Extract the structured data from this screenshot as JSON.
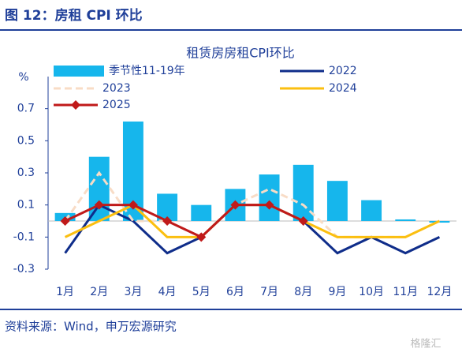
{
  "header": {
    "title": "图 12：房租 CPI 环比"
  },
  "chart_data": {
    "type": "bar",
    "title": "租赁房房租CPI环比",
    "y_label": "%",
    "categories": [
      "1月",
      "2月",
      "3月",
      "4月",
      "5月",
      "6月",
      "7月",
      "8月",
      "9月",
      "10月",
      "11月",
      "12月"
    ],
    "series": [
      {
        "name": "季节性11-19年",
        "type": "bar",
        "color": "#16b6ec",
        "values": [
          0.05,
          0.4,
          0.62,
          0.17,
          0.1,
          0.2,
          0.29,
          0.35,
          0.25,
          0.13,
          0.01,
          -0.01
        ]
      },
      {
        "name": "2022",
        "type": "line",
        "color": "#0f2d8a",
        "values": [
          -0.2,
          0.1,
          0.0,
          -0.2,
          -0.1,
          0.1,
          0.1,
          0.0,
          -0.2,
          -0.1,
          -0.2,
          -0.1
        ]
      },
      {
        "name": "2023",
        "type": "line",
        "dashed": true,
        "color": "#f8dcc6",
        "values": [
          0.0,
          0.3,
          0.0,
          0.0,
          -0.1,
          0.1,
          0.2,
          0.1,
          -0.1,
          -0.1,
          -0.1,
          0.0
        ]
      },
      {
        "name": "2024",
        "type": "line",
        "color": "#fbbf10",
        "values": [
          -0.1,
          0.0,
          0.1,
          -0.1,
          -0.1,
          0.1,
          0.1,
          0.0,
          -0.1,
          -0.1,
          -0.1,
          0.0
        ]
      },
      {
        "name": "2025",
        "type": "line",
        "markers": true,
        "color": "#c01a1a",
        "values": [
          0.0,
          0.1,
          0.1,
          0.0,
          -0.1,
          0.1,
          0.1,
          0.0,
          null,
          null,
          null,
          null
        ]
      }
    ],
    "ylim": [
      -0.3,
      0.9
    ],
    "yticks": [
      -0.3,
      -0.1,
      0.1,
      0.3,
      0.5,
      0.7
    ]
  },
  "footer": {
    "source": "资料来源：Wind，申万宏源研究",
    "watermark": "格隆汇"
  }
}
